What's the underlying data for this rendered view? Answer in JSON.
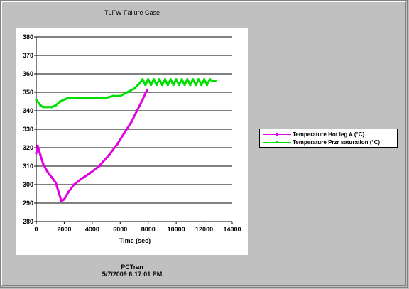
{
  "window": {
    "title": "TLFW Failure Case"
  },
  "footer": {
    "line1": "PCTran",
    "line2": "5/7/2009 6:17:01 PM"
  },
  "chart_data": {
    "type": "line",
    "title": "TLFW Failure Case",
    "xlabel": "Time (sec)",
    "ylabel": "",
    "xlim": [
      0,
      14000
    ],
    "ylim": [
      280,
      380
    ],
    "xticks": [
      0,
      2000,
      4000,
      6000,
      8000,
      10000,
      12000,
      14000
    ],
    "yticks": [
      280,
      290,
      300,
      310,
      320,
      330,
      340,
      350,
      360,
      370,
      380
    ],
    "grid": "horizontal",
    "legend_position": "right",
    "series": [
      {
        "name": "Temperature Hot leg A (°C)",
        "color": "#e000e0",
        "x": [
          0,
          100,
          300,
          500,
          800,
          1100,
          1400,
          1600,
          1800,
          2000,
          2300,
          2700,
          3200,
          3800,
          4500,
          5200,
          5800,
          6300,
          6800,
          7200,
          7600,
          7900
        ],
        "y": [
          317,
          321,
          316,
          311,
          307,
          304,
          301,
          296,
          291,
          292,
          296,
          300,
          303,
          306,
          310,
          316,
          322,
          328,
          334,
          340,
          346,
          351
        ]
      },
      {
        "name": "Temperature Przr saturation (°C)",
        "color": "#00e000",
        "x": [
          0,
          100,
          300,
          500,
          800,
          1100,
          1400,
          1700,
          2000,
          2300,
          2600,
          3000,
          3500,
          4000,
          4500,
          5000,
          5500,
          6000,
          6500,
          7000,
          7400,
          7600,
          7800,
          8000,
          8200,
          8400,
          8600,
          8800,
          9000,
          9200,
          9400,
          9600,
          9800,
          10000,
          10200,
          10400,
          10600,
          10800,
          11000,
          11200,
          11400,
          11600,
          11800,
          12000,
          12200,
          12400,
          12600,
          12800
        ],
        "y": [
          346,
          345,
          343,
          342,
          342,
          342,
          343,
          345,
          346,
          347,
          347,
          347,
          347,
          347,
          347,
          347,
          348,
          348,
          350,
          352,
          355,
          357,
          354,
          357,
          354,
          357,
          354,
          357,
          354,
          357,
          354,
          357,
          354,
          357,
          354,
          357,
          354,
          357,
          354,
          357,
          354,
          357,
          354,
          357,
          354,
          357,
          356,
          356
        ]
      }
    ]
  }
}
